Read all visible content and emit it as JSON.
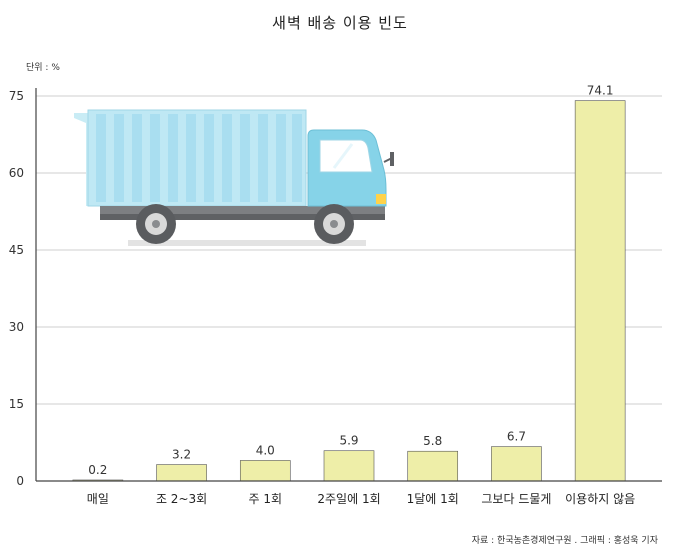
{
  "chart_data": {
    "type": "bar",
    "title": "새벽 배송 이용 빈도",
    "unit_label": "단위 : %",
    "categories": [
      "매일",
      "조 2~3회",
      "주 1회",
      "2주일에 1회",
      "1달에 1회",
      "그보다 드물게",
      "이용하지 않음"
    ],
    "values": [
      0.2,
      3.2,
      4.0,
      5.9,
      5.8,
      6.7,
      74.1
    ],
    "value_labels": [
      "0.2",
      "3.2",
      "4.0",
      "5.9",
      "5.8",
      "6.7",
      "74.1"
    ],
    "yticks": [
      "0",
      "15",
      "30",
      "45",
      "60",
      "75"
    ],
    "ylim": [
      0,
      75
    ],
    "grid": true,
    "bar_color": "#eeeea8",
    "bar_edge_color": "#555555",
    "source": "자료 : 한국농촌경제연구원 . 그래픽 : 홍성욱 기자"
  },
  "illustration": {
    "icon": "delivery-truck-icon"
  }
}
